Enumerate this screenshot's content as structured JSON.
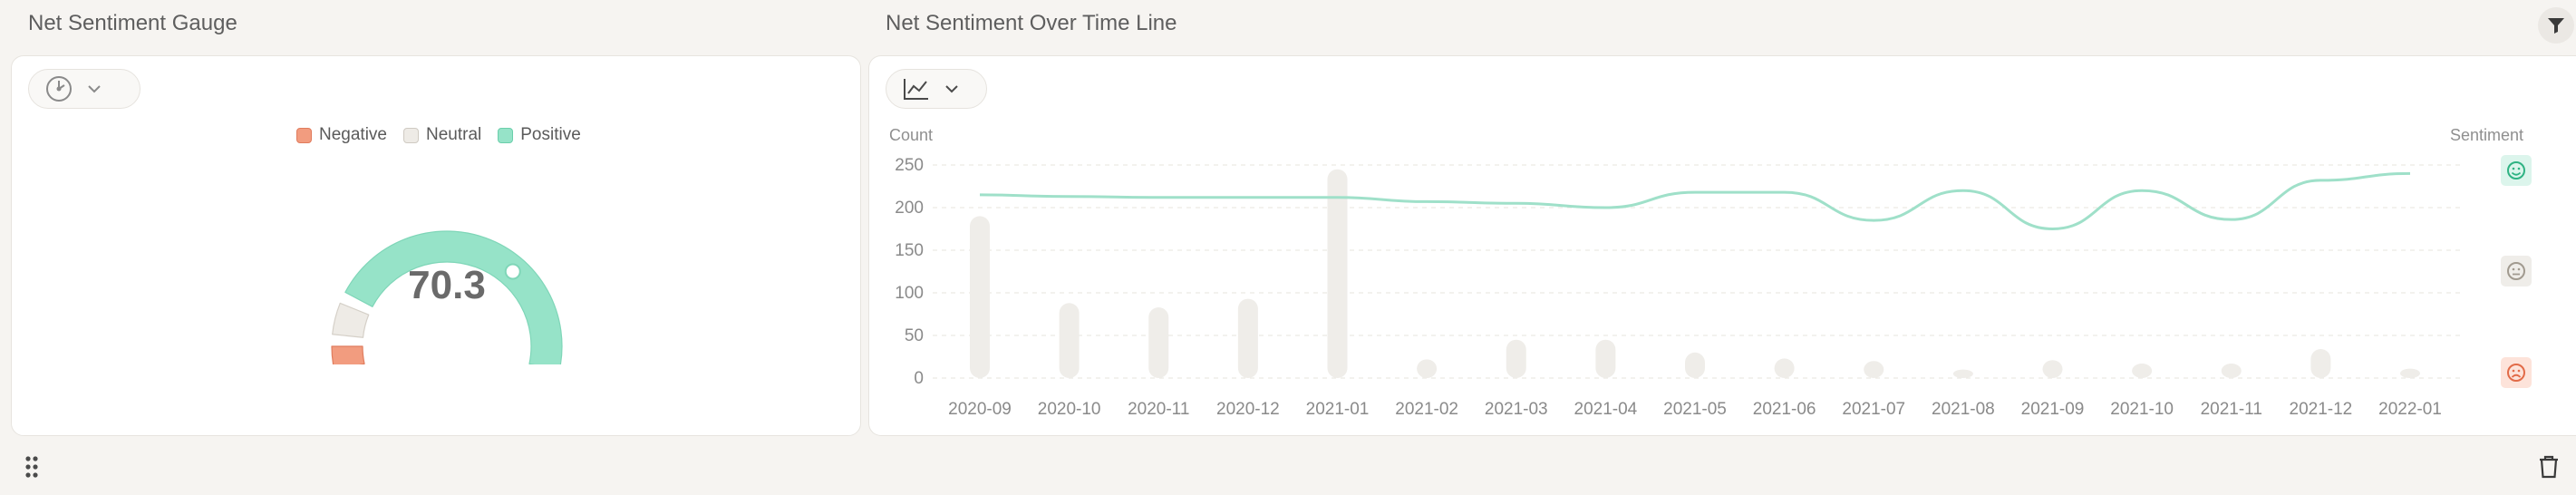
{
  "gauge_panel": {
    "title": "Net Sentiment Gauge",
    "toolbar_icon": "gauge-icon",
    "legend": [
      {
        "label": "Negative",
        "color": "#f29c7f"
      },
      {
        "label": "Neutral",
        "color": "#eeebe6"
      },
      {
        "label": "Positive",
        "color": "#96e3c8"
      }
    ],
    "value": "70.3",
    "value_fraction": 0.703
  },
  "line_panel": {
    "title": "Net Sentiment Over Time Line",
    "toolbar_icon": "line-chart-icon",
    "left_axis_title": "Count",
    "right_axis_title": "Sentiment",
    "sentiment_icons": [
      "smile-icon",
      "neutral-face-icon",
      "frown-icon"
    ]
  },
  "toolbar": {
    "filter_icon": "filter-icon",
    "drag_icon": "drag-handle-icon",
    "delete_icon": "trash-icon"
  },
  "colors": {
    "positive": "#96e3c8",
    "neutral": "#eeebe6",
    "negative": "#f29c7f",
    "line": "#9fe0c9",
    "bar": "#efede9",
    "background": "#f6f4f1"
  },
  "chart_data": {
    "type": "bar",
    "categories": [
      "2020-09",
      "2020-10",
      "2020-11",
      "2020-12",
      "2021-01",
      "2021-02",
      "2021-03",
      "2021-04",
      "2021-05",
      "2021-06",
      "2021-07",
      "2021-08",
      "2021-09",
      "2021-10",
      "2021-11",
      "2021-12",
      "2022-01"
    ],
    "series": [
      {
        "type": "bar",
        "axis": "left",
        "values": [
          190,
          88,
          83,
          93,
          245,
          22,
          45,
          45,
          30,
          23,
          20,
          10,
          21,
          17,
          17,
          34,
          11
        ]
      },
      {
        "type": "line",
        "axis": "left",
        "values": [
          215,
          213,
          212,
          212,
          212,
          207,
          205,
          200,
          218,
          218,
          185,
          220,
          175,
          220,
          186,
          232,
          240
        ]
      }
    ],
    "yticks": [
      0,
      50,
      100,
      150,
      200,
      250
    ],
    "ylim": [
      0,
      250
    ],
    "ylabel": "Count",
    "y2label": "Sentiment",
    "grid": true
  }
}
